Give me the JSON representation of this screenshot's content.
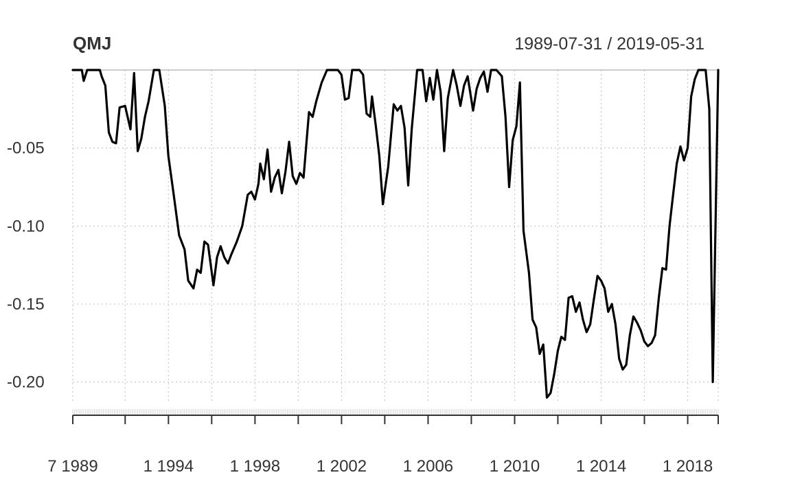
{
  "chart_data": {
    "type": "line",
    "title": "QMJ",
    "date_range": "1989-07-31 / 2019-05-31",
    "ylim": [
      -0.2125,
      0
    ],
    "y_ticks": [
      -0.05,
      -0.1,
      -0.15,
      -0.2
    ],
    "y_tick_labels": [
      "-0.05",
      "-0.10",
      "-0.15",
      "-0.20"
    ],
    "x_tick_dates": [
      "1989-07-31",
      "1992-01-01",
      "1994-01-01",
      "1996-01-01",
      "1998-01-01",
      "2000-01-01",
      "2002-01-01",
      "2004-01-01",
      "2006-01-01",
      "2008-01-01",
      "2010-01-01",
      "2012-01-01",
      "2014-01-01",
      "2016-01-01",
      "2018-01-01",
      "2019-05-31"
    ],
    "x_tick_labels": [
      {
        "date": "1989-07-31",
        "label": "7 1989"
      },
      {
        "date": "1994-01-01",
        "label": "1 1994"
      },
      {
        "date": "1998-01-01",
        "label": "1 1998"
      },
      {
        "date": "2002-01-01",
        "label": "1 2002"
      },
      {
        "date": "2006-01-01",
        "label": "1 2006"
      },
      {
        "date": "2010-01-01",
        "label": "1 2010"
      },
      {
        "date": "2014-01-01",
        "label": "1 2014"
      },
      {
        "date": "2018-01-01",
        "label": "1 2018"
      }
    ],
    "grid": true,
    "series": [
      {
        "values": [
          [
            "1989-07-31",
            0.0
          ],
          [
            "1989-12-31",
            0.0
          ],
          [
            "1990-01-31",
            -0.007
          ],
          [
            "1990-03-31",
            0.0
          ],
          [
            "1990-10-31",
            0.0
          ],
          [
            "1990-11-30",
            -0.004
          ],
          [
            "1991-01-31",
            -0.01
          ],
          [
            "1991-03-31",
            -0.04
          ],
          [
            "1991-05-31",
            -0.046
          ],
          [
            "1991-07-31",
            -0.047
          ],
          [
            "1991-09-30",
            -0.024
          ],
          [
            "1991-12-31",
            -0.023
          ],
          [
            "1992-03-31",
            -0.038
          ],
          [
            "1992-05-31",
            -0.002
          ],
          [
            "1992-07-31",
            -0.052
          ],
          [
            "1992-09-30",
            -0.044
          ],
          [
            "1992-11-30",
            -0.03
          ],
          [
            "1993-01-31",
            -0.02
          ],
          [
            "1993-04-30",
            0.0
          ],
          [
            "1993-07-31",
            0.0
          ],
          [
            "1993-10-31",
            -0.023
          ],
          [
            "1993-12-31",
            -0.055
          ],
          [
            "1994-03-31",
            -0.08
          ],
          [
            "1994-06-30",
            -0.106
          ],
          [
            "1994-09-30",
            -0.115
          ],
          [
            "1994-11-30",
            -0.135
          ],
          [
            "1995-02-28",
            -0.14
          ],
          [
            "1995-04-30",
            -0.128
          ],
          [
            "1995-06-30",
            -0.13
          ],
          [
            "1995-08-31",
            -0.11
          ],
          [
            "1995-10-31",
            -0.112
          ],
          [
            "1996-01-31",
            -0.138
          ],
          [
            "1996-03-31",
            -0.12
          ],
          [
            "1996-05-31",
            -0.113
          ],
          [
            "1996-07-31",
            -0.12
          ],
          [
            "1996-09-30",
            -0.124
          ],
          [
            "1996-11-30",
            -0.118
          ],
          [
            "1997-02-28",
            -0.11
          ],
          [
            "1997-05-31",
            -0.1
          ],
          [
            "1997-08-31",
            -0.08
          ],
          [
            "1997-10-31",
            -0.078
          ],
          [
            "1997-12-31",
            -0.083
          ],
          [
            "1998-02-28",
            -0.073
          ],
          [
            "1998-03-31",
            -0.06
          ],
          [
            "1998-05-31",
            -0.07
          ],
          [
            "1998-07-31",
            -0.051
          ],
          [
            "1998-09-30",
            -0.078
          ],
          [
            "1998-11-30",
            -0.069
          ],
          [
            "1999-01-31",
            -0.064
          ],
          [
            "1999-03-31",
            -0.079
          ],
          [
            "1999-05-31",
            -0.065
          ],
          [
            "1999-07-31",
            -0.046
          ],
          [
            "1999-09-30",
            -0.068
          ],
          [
            "1999-11-30",
            -0.073
          ],
          [
            "2000-01-31",
            -0.066
          ],
          [
            "2000-03-31",
            -0.069
          ],
          [
            "2000-06-30",
            -0.027
          ],
          [
            "2000-08-31",
            -0.03
          ],
          [
            "2000-10-31",
            -0.02
          ],
          [
            "2001-01-31",
            -0.008
          ],
          [
            "2001-04-30",
            0.0
          ],
          [
            "2001-10-31",
            0.0
          ],
          [
            "2001-12-31",
            -0.003
          ],
          [
            "2002-02-28",
            -0.019
          ],
          [
            "2002-04-30",
            -0.018
          ],
          [
            "2002-06-30",
            0.0
          ],
          [
            "2002-08-31",
            0.0
          ],
          [
            "2002-10-31",
            0.0
          ],
          [
            "2002-12-31",
            -0.003
          ],
          [
            "2003-02-28",
            -0.028
          ],
          [
            "2003-04-30",
            -0.03
          ],
          [
            "2003-05-31",
            -0.017
          ],
          [
            "2003-07-31",
            -0.035
          ],
          [
            "2003-09-30",
            -0.055
          ],
          [
            "2003-11-30",
            -0.086
          ],
          [
            "2004-02-28",
            -0.062
          ],
          [
            "2004-05-31",
            -0.022
          ],
          [
            "2004-07-31",
            -0.026
          ],
          [
            "2004-09-30",
            -0.023
          ],
          [
            "2004-11-30",
            -0.037
          ],
          [
            "2005-01-31",
            -0.074
          ],
          [
            "2005-03-31",
            -0.038
          ],
          [
            "2005-06-30",
            0.0
          ],
          [
            "2005-09-30",
            0.0
          ],
          [
            "2005-11-30",
            -0.02
          ],
          [
            "2006-01-31",
            -0.005
          ],
          [
            "2006-03-31",
            -0.019
          ],
          [
            "2006-05-31",
            0.0
          ],
          [
            "2006-07-31",
            -0.014
          ],
          [
            "2006-09-30",
            -0.052
          ],
          [
            "2006-11-30",
            -0.018
          ],
          [
            "2007-02-28",
            0.0
          ],
          [
            "2007-04-30",
            -0.01
          ],
          [
            "2007-06-30",
            -0.023
          ],
          [
            "2007-08-31",
            -0.01
          ],
          [
            "2007-10-31",
            -0.004
          ],
          [
            "2008-01-31",
            -0.026
          ],
          [
            "2008-03-31",
            -0.012
          ],
          [
            "2008-05-31",
            -0.005
          ],
          [
            "2008-07-31",
            -0.001
          ],
          [
            "2008-09-30",
            -0.014
          ],
          [
            "2008-11-30",
            0.0
          ],
          [
            "2009-02-28",
            0.0
          ],
          [
            "2009-05-31",
            -0.004
          ],
          [
            "2009-07-31",
            -0.03
          ],
          [
            "2009-09-30",
            -0.075
          ],
          [
            "2009-11-30",
            -0.045
          ],
          [
            "2010-01-31",
            -0.036
          ],
          [
            "2010-03-31",
            -0.008
          ],
          [
            "2010-05-31",
            -0.103
          ],
          [
            "2010-08-31",
            -0.13
          ],
          [
            "2010-10-31",
            -0.16
          ],
          [
            "2010-12-31",
            -0.165
          ],
          [
            "2011-02-28",
            -0.182
          ],
          [
            "2011-04-30",
            -0.176
          ],
          [
            "2011-06-30",
            -0.21
          ],
          [
            "2011-08-31",
            -0.207
          ],
          [
            "2011-10-31",
            -0.195
          ],
          [
            "2011-12-31",
            -0.18
          ],
          [
            "2012-02-28",
            -0.171
          ],
          [
            "2012-04-30",
            -0.173
          ],
          [
            "2012-06-30",
            -0.146
          ],
          [
            "2012-08-31",
            -0.145
          ],
          [
            "2012-10-31",
            -0.155
          ],
          [
            "2012-12-31",
            -0.149
          ],
          [
            "2013-02-28",
            -0.16
          ],
          [
            "2013-04-30",
            -0.168
          ],
          [
            "2013-06-30",
            -0.163
          ],
          [
            "2013-08-31",
            -0.147
          ],
          [
            "2013-10-31",
            -0.132
          ],
          [
            "2013-12-31",
            -0.135
          ],
          [
            "2014-02-28",
            -0.14
          ],
          [
            "2014-04-30",
            -0.155
          ],
          [
            "2014-06-30",
            -0.15
          ],
          [
            "2014-08-31",
            -0.163
          ],
          [
            "2014-10-31",
            -0.185
          ],
          [
            "2014-12-31",
            -0.192
          ],
          [
            "2015-02-28",
            -0.189
          ],
          [
            "2015-04-30",
            -0.17
          ],
          [
            "2015-06-30",
            -0.158
          ],
          [
            "2015-08-31",
            -0.162
          ],
          [
            "2015-10-31",
            -0.167
          ],
          [
            "2015-12-31",
            -0.174
          ],
          [
            "2016-02-29",
            -0.177
          ],
          [
            "2016-04-30",
            -0.175
          ],
          [
            "2016-06-30",
            -0.17
          ],
          [
            "2016-08-31",
            -0.146
          ],
          [
            "2016-10-31",
            -0.127
          ],
          [
            "2016-12-31",
            -0.128
          ],
          [
            "2017-02-28",
            -0.1
          ],
          [
            "2017-04-30",
            -0.08
          ],
          [
            "2017-06-30",
            -0.06
          ],
          [
            "2017-08-31",
            -0.049
          ],
          [
            "2017-10-31",
            -0.058
          ],
          [
            "2017-12-31",
            -0.05
          ],
          [
            "2018-02-28",
            -0.017
          ],
          [
            "2018-04-30",
            -0.006
          ],
          [
            "2018-06-30",
            0.0
          ],
          [
            "2018-08-31",
            0.0
          ],
          [
            "2018-10-31",
            0.0
          ],
          [
            "2018-12-31",
            -0.025
          ],
          [
            "2019-02-28",
            -0.2
          ],
          [
            "2019-05-31",
            0.0
          ]
        ]
      }
    ]
  }
}
